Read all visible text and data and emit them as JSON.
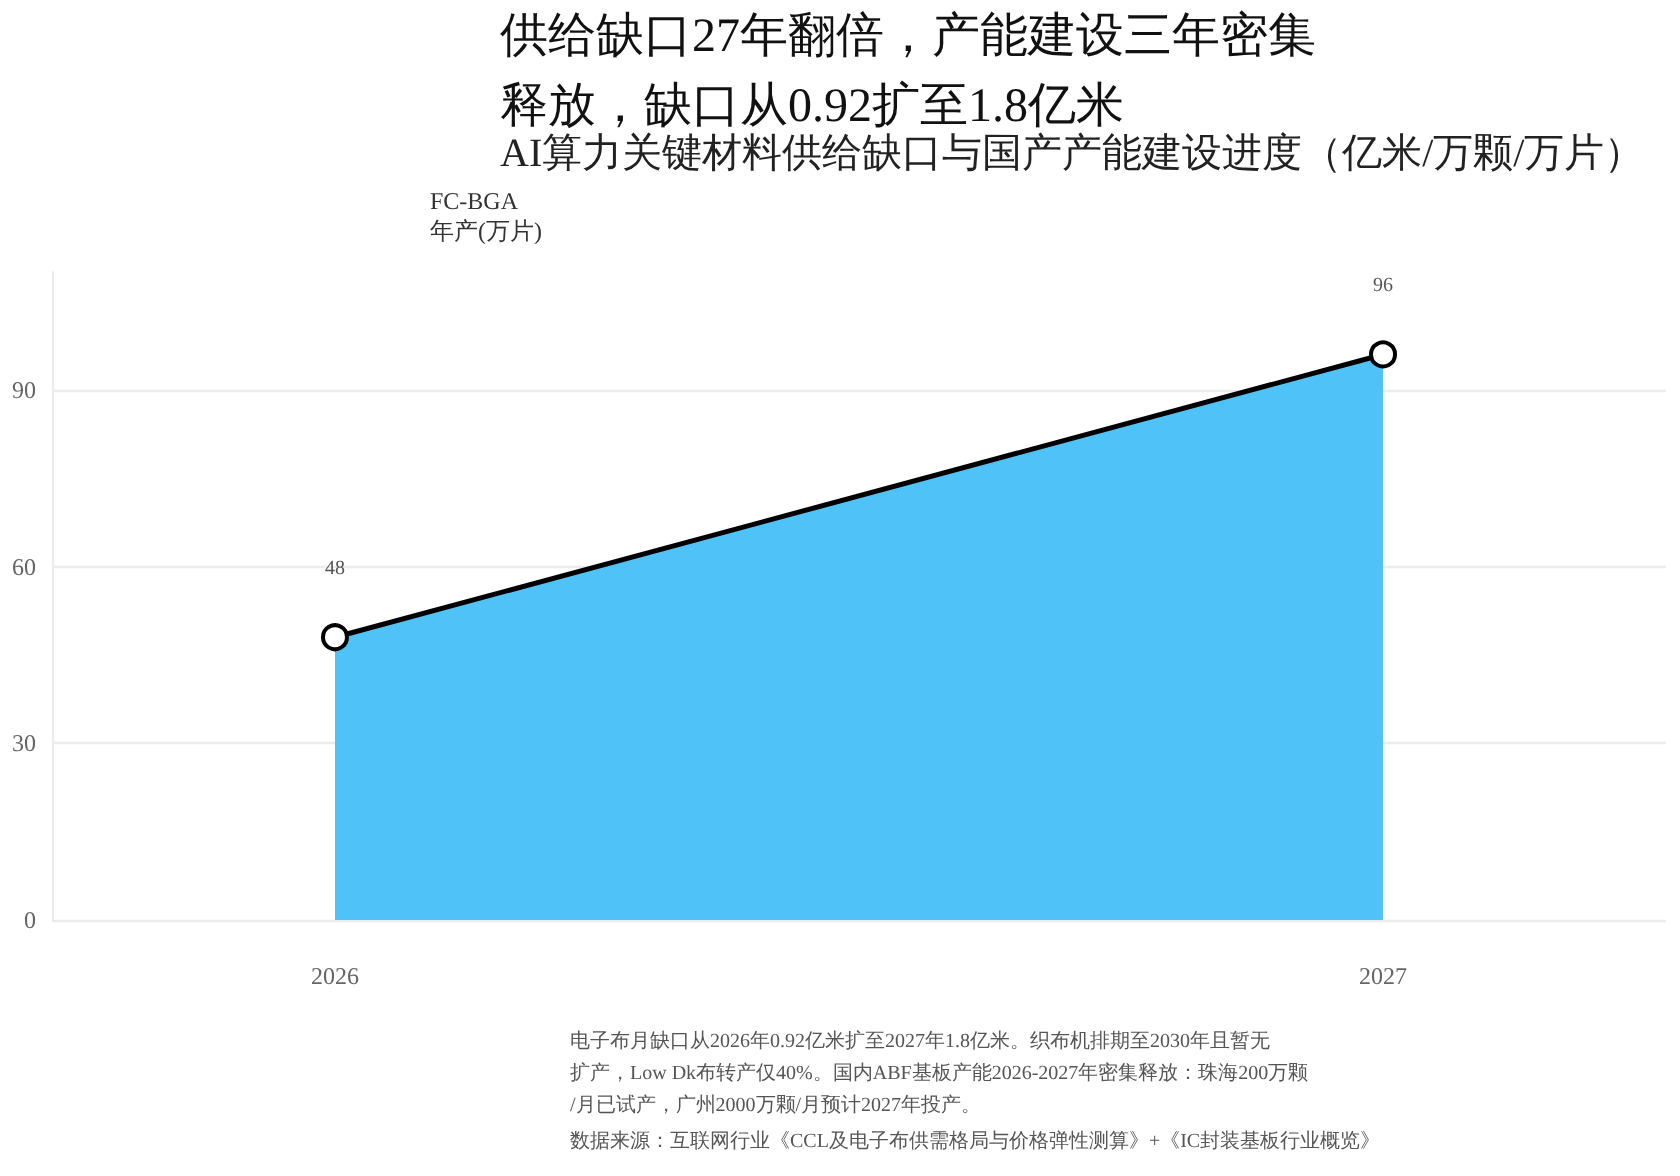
{
  "chart_data": {
    "type": "area",
    "title": "供给缺口27年翻倍，产能建设三年密集释放，缺口从0.92扩至1.8亿米",
    "subtitle": "AI算力关键材料供给缺口与国产产能建设进度（亿米/万颗/万片）",
    "x": [
      2026,
      2027
    ],
    "values": [
      48,
      96
    ],
    "color": "#4fc3f7",
    "xlim": [
      2025.73,
      2027.27
    ],
    "xticks": [
      2026,
      2027
    ],
    "ylim": [
      0,
      110
    ],
    "yticks": [
      0,
      30,
      60,
      90
    ],
    "grid": "y",
    "marker": "circle",
    "line_style": "solid",
    "data_labels": true,
    "annotations": [
      "FC-BGA\n年产(万片)",
      "电子布月缺口从2026年0.92亿米扩至2027年1.8亿米。织布机排期至2030年且暂无扩产，Low Dk布转产仅40%。国内ABF基板产能2026-2027年密集释放：珠海200万颗/月已试产，广州2000万颗/月预计2027年投产。",
      "数据来源：互联网行业《CCL及电子布供需格局与价格弹性测算》+《IC封装基板行业概览》"
    ]
  }
}
